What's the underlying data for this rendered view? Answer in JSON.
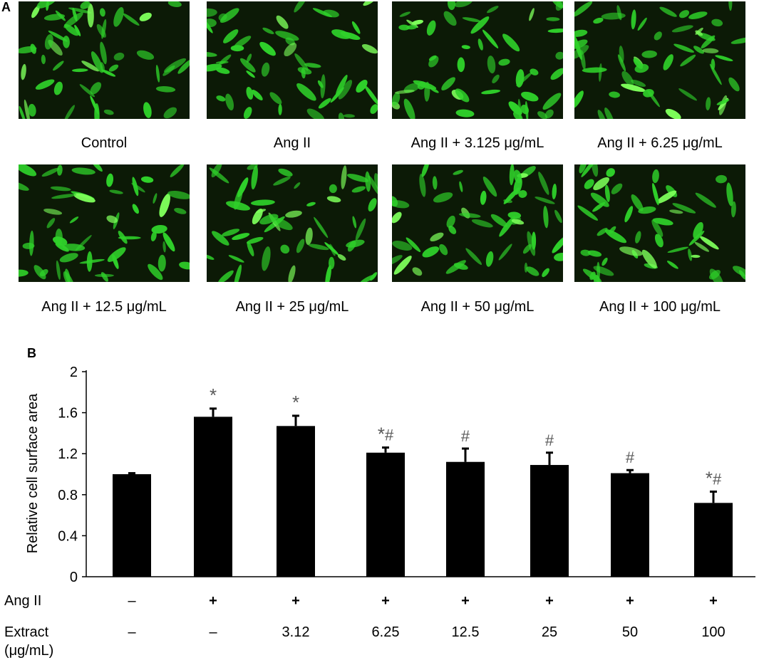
{
  "panel_a": {
    "letter": "A",
    "captions": [
      "Control",
      "Ang II",
      "Ang II + 3.125 μg/mL",
      "Ang II + 6.25 μg/mL",
      "Ang II + 12.5 μg/mL",
      "Ang II + 25 μg/mL",
      "Ang II + 50 μg/mL",
      "Ang II + 100 μg/mL"
    ],
    "colors": {
      "cell": "#2fd12a",
      "cell_bright": "#7dff5a",
      "background": "#0c1a06"
    }
  },
  "chart_data": {
    "panel_letter": "B",
    "type": "bar",
    "ylabel": "Relative  cell surface area",
    "ylim": [
      0,
      2
    ],
    "yticks": [
      0,
      0.4,
      0.8,
      1.2,
      1.6,
      2
    ],
    "ytick_labels": [
      "0",
      "0.4",
      "0.8",
      "1.2",
      "1.6",
      "2"
    ],
    "values": [
      1.0,
      1.56,
      1.47,
      1.21,
      1.12,
      1.09,
      1.01,
      0.72
    ],
    "errors": [
      0.01,
      0.08,
      0.1,
      0.05,
      0.13,
      0.12,
      0.03,
      0.11
    ],
    "annotations": [
      "",
      "*",
      "*",
      "*#",
      "#",
      "#",
      "#",
      "*#"
    ],
    "rows": [
      {
        "label": "Ang II",
        "values": [
          "–",
          "+",
          "+",
          "+",
          "+",
          "+",
          "+",
          "+"
        ]
      },
      {
        "label": "Extract",
        "sublabel": "(μg/mL)",
        "values": [
          "–",
          "–",
          "3.12",
          "6.25",
          "12.5",
          "25",
          "50",
          "100"
        ]
      }
    ],
    "bar_color": "#000000",
    "annotation_color": "#595959",
    "grid": false
  }
}
